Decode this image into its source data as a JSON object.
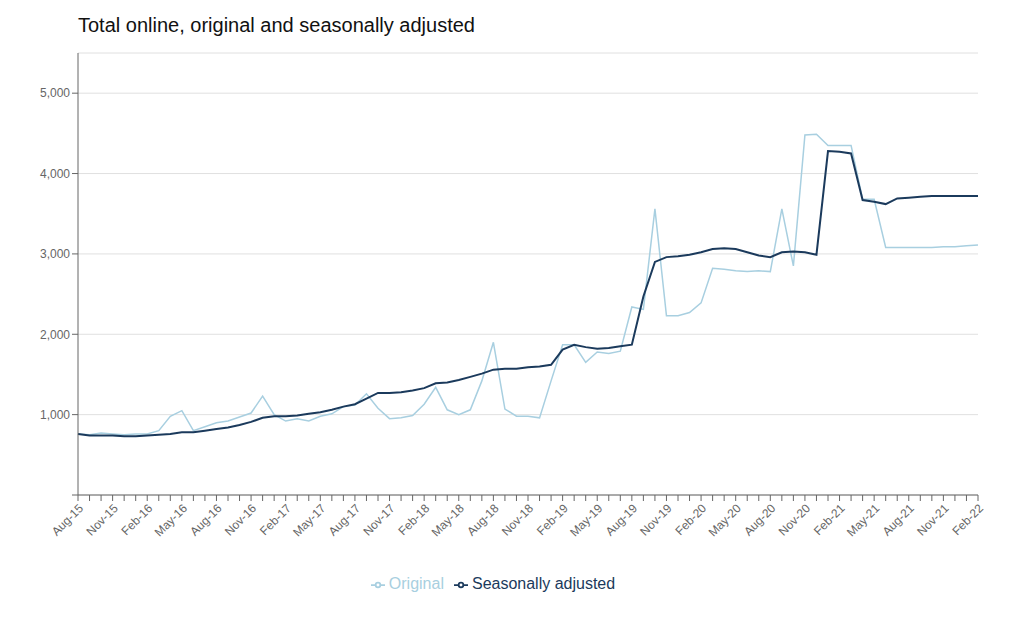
{
  "chart_data": {
    "type": "line",
    "title": "Total online, original and seasonally adjusted",
    "categories": [
      "Aug-15",
      null,
      null,
      "Nov-15",
      null,
      null,
      "Feb-16",
      null,
      null,
      "May-16",
      null,
      null,
      "Aug-16",
      null,
      null,
      "Nov-16",
      null,
      null,
      "Feb-17",
      null,
      null,
      "May-17",
      null,
      null,
      "Aug-17",
      null,
      null,
      "Nov-17",
      null,
      null,
      "Feb-18",
      null,
      null,
      "May-18",
      null,
      null,
      "Aug-18",
      null,
      null,
      "Nov-18",
      null,
      null,
      "Feb-19",
      null,
      null,
      "May-19",
      null,
      null,
      "Aug-19",
      null,
      null,
      "Nov-19",
      null,
      null,
      "Feb-20",
      null,
      null,
      "May-20",
      null,
      null,
      "Aug-20",
      null,
      null,
      "Nov-20",
      null,
      null,
      "Feb-21",
      null,
      null,
      "May-21",
      null,
      null,
      "Aug-21",
      null,
      null,
      "Nov-21",
      null,
      null,
      "Feb-22"
    ],
    "series": [
      {
        "name": "Original",
        "color": "#a8cfe0",
        "values": [
          760,
          750,
          770,
          760,
          750,
          760,
          760,
          800,
          980,
          1050,
          800,
          850,
          900,
          920,
          970,
          1020,
          1230,
          1000,
          920,
          950,
          920,
          980,
          1010,
          1100,
          1120,
          1260,
          1080,
          950,
          960,
          990,
          1130,
          1340,
          1060,
          1000,
          1060,
          1420,
          1900,
          1070,
          980,
          980,
          960,
          1420,
          1870,
          1870,
          1650,
          1780,
          1760,
          1790,
          2340,
          2310,
          3560,
          2230,
          2230,
          2270,
          2390,
          2820,
          2810,
          2790,
          2780,
          2790,
          2780,
          3560,
          2850,
          4480,
          4490,
          4350,
          4350,
          4350,
          3680,
          3680,
          3080,
          3080,
          3080,
          3080,
          3080,
          3090,
          3090,
          3100,
          3110
        ]
      },
      {
        "name": "Seasonally adjusted",
        "color": "#1b3a5c",
        "values": [
          760,
          740,
          740,
          740,
          730,
          730,
          740,
          750,
          760,
          780,
          780,
          800,
          820,
          840,
          870,
          910,
          960,
          980,
          980,
          990,
          1010,
          1030,
          1060,
          1100,
          1130,
          1200,
          1270,
          1270,
          1280,
          1300,
          1330,
          1390,
          1400,
          1430,
          1470,
          1510,
          1560,
          1570,
          1570,
          1590,
          1600,
          1620,
          1810,
          1870,
          1840,
          1820,
          1830,
          1850,
          1870,
          2470,
          2900,
          2960,
          2970,
          2990,
          3020,
          3060,
          3070,
          3060,
          3020,
          2980,
          2960,
          3020,
          3030,
          3020,
          2990,
          4280,
          4270,
          4250,
          3670,
          3650,
          3620,
          3690,
          3700,
          3710,
          3720,
          3720,
          3720,
          3720,
          3720
        ]
      }
    ],
    "ylim": [
      0,
      5500
    ],
    "yticks": [
      {
        "value": 0,
        "label": ""
      },
      {
        "value": 1000,
        "label": "1,000"
      },
      {
        "value": 2000,
        "label": "2,000"
      },
      {
        "value": 3000,
        "label": "3,000"
      },
      {
        "value": 4000,
        "label": "4,000"
      },
      {
        "value": 5000,
        "label": "5,000"
      }
    ],
    "grid": true,
    "legend": "bottom"
  }
}
